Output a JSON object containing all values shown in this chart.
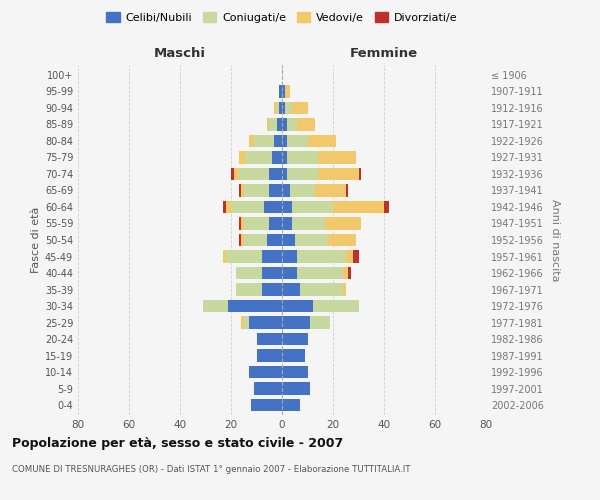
{
  "age_groups": [
    "0-4",
    "5-9",
    "10-14",
    "15-19",
    "20-24",
    "25-29",
    "30-34",
    "35-39",
    "40-44",
    "45-49",
    "50-54",
    "55-59",
    "60-64",
    "65-69",
    "70-74",
    "75-79",
    "80-84",
    "85-89",
    "90-94",
    "95-99",
    "100+"
  ],
  "birth_years": [
    "2002-2006",
    "1997-2001",
    "1992-1996",
    "1987-1991",
    "1982-1986",
    "1977-1981",
    "1972-1976",
    "1967-1971",
    "1962-1966",
    "1957-1961",
    "1952-1956",
    "1947-1951",
    "1942-1946",
    "1937-1941",
    "1932-1936",
    "1927-1931",
    "1922-1926",
    "1917-1921",
    "1912-1916",
    "1907-1911",
    "≤ 1906"
  ],
  "male": {
    "celibi": [
      12,
      11,
      13,
      10,
      10,
      13,
      21,
      8,
      8,
      8,
      6,
      5,
      7,
      5,
      5,
      4,
      3,
      2,
      1,
      1,
      0
    ],
    "coniugati": [
      0,
      0,
      0,
      0,
      0,
      2,
      10,
      10,
      10,
      14,
      9,
      10,
      13,
      10,
      12,
      10,
      8,
      3,
      1,
      0,
      0
    ],
    "vedovi": [
      0,
      0,
      0,
      0,
      0,
      1,
      0,
      0,
      0,
      1,
      1,
      1,
      2,
      1,
      2,
      3,
      2,
      1,
      1,
      0,
      0
    ],
    "divorziati": [
      0,
      0,
      0,
      0,
      0,
      0,
      0,
      0,
      0,
      0,
      1,
      1,
      1,
      1,
      1,
      0,
      0,
      0,
      0,
      0,
      0
    ]
  },
  "female": {
    "nubili": [
      7,
      11,
      10,
      9,
      10,
      11,
      12,
      7,
      6,
      6,
      5,
      4,
      4,
      3,
      2,
      2,
      2,
      2,
      1,
      1,
      0
    ],
    "coniugate": [
      0,
      0,
      0,
      0,
      0,
      8,
      18,
      17,
      18,
      19,
      13,
      13,
      16,
      10,
      12,
      12,
      8,
      4,
      3,
      0,
      0
    ],
    "vedove": [
      0,
      0,
      0,
      0,
      0,
      0,
      0,
      1,
      2,
      3,
      11,
      14,
      20,
      12,
      16,
      15,
      11,
      7,
      6,
      2,
      0
    ],
    "divorziate": [
      0,
      0,
      0,
      0,
      0,
      0,
      0,
      0,
      1,
      2,
      0,
      0,
      2,
      1,
      1,
      0,
      0,
      0,
      0,
      0,
      0
    ]
  },
  "colors": {
    "celibi": "#4472C4",
    "coniugati": "#C8D9A0",
    "vedovi": "#F2C96A",
    "divorziati": "#C0302A"
  },
  "xlim": 80,
  "title": "Popolazione per età, sesso e stato civile - 2007",
  "subtitle": "COMUNE DI TRESNURAGHES (OR) - Dati ISTAT 1° gennaio 2007 - Elaborazione TUTTITALIA.IT",
  "ylabel_left": "Fasce di età",
  "ylabel_right": "Anni di nascita",
  "xlabel_maschi": "Maschi",
  "xlabel_femmine": "Femmine",
  "legend_labels": [
    "Celibi/Nubili",
    "Coniugati/e",
    "Vedovi/e",
    "Divorziati/e"
  ],
  "bg_color": "#F5F5F5",
  "grid_color": "#CCCCCC",
  "bar_height": 0.75
}
